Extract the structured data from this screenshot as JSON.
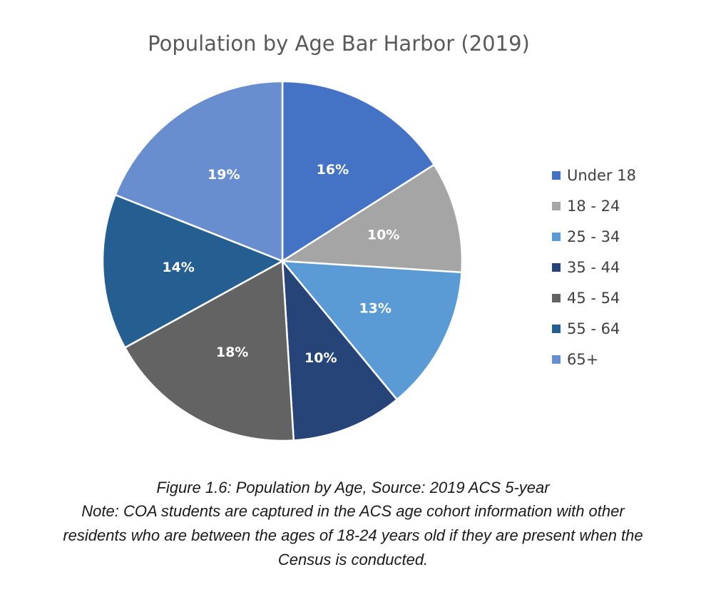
{
  "chart_data": {
    "type": "pie",
    "title": "Population by Age Bar Harbor (2019)",
    "categories": [
      "Under 18",
      "18 - 24",
      "25 - 34",
      "35 - 44",
      "45 - 54",
      "55 - 64",
      "65+"
    ],
    "values": [
      16,
      10,
      13,
      10,
      18,
      14,
      19
    ],
    "labels": [
      "16%",
      "10%",
      "13%",
      "10%",
      "18%",
      "14%",
      "19%"
    ],
    "colors": [
      "#4472C4",
      "#A5A5A5",
      "#5B9BD5",
      "#264478",
      "#636363",
      "#255E91",
      "#698ED0"
    ],
    "legend": "right",
    "start_angle_deg": 0,
    "direction": "clockwise"
  },
  "caption": {
    "figure": "Figure 1.6: Population by Age, Source: 2019 ACS 5-year",
    "note": "Note: COA students are captured in the ACS age cohort information with other residents who are between the ages of 18-24 years old if they are present when the Census is conducted."
  }
}
